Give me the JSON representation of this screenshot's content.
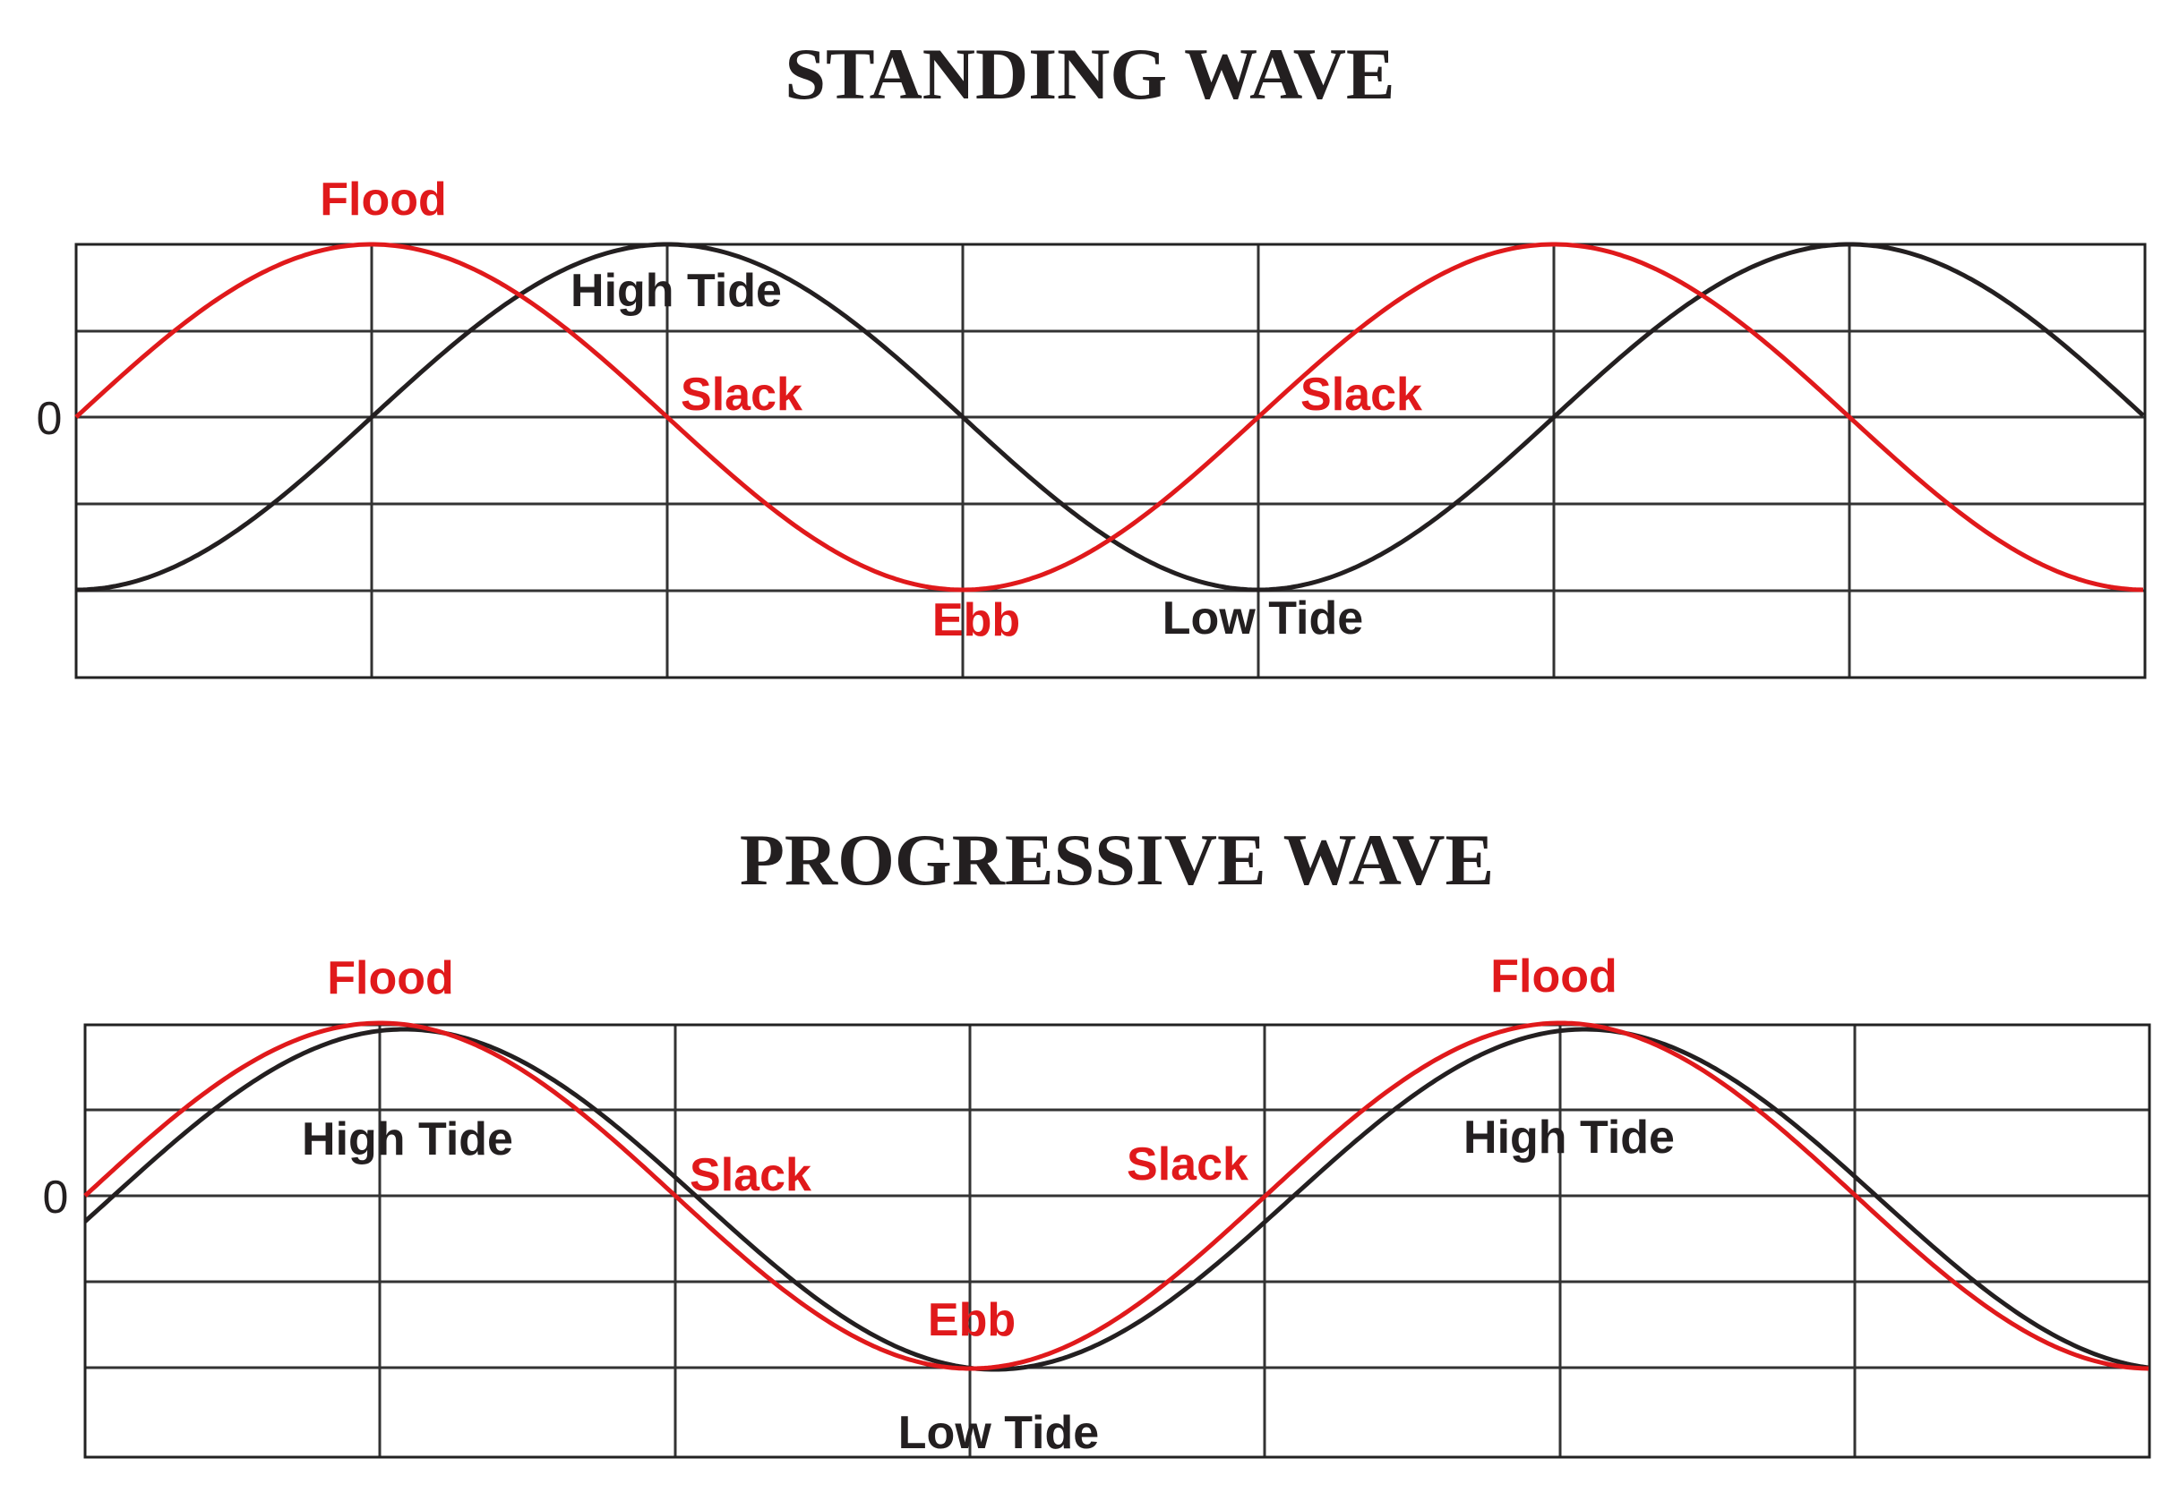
{
  "colors": {
    "current": "#e0191b",
    "tide": "#231f20",
    "grid": "#333333"
  },
  "diagrams": [
    {
      "title": "STANDING WAVE",
      "zero_label": "0",
      "labels": {
        "flood": "Flood",
        "high_tide": "High Tide",
        "slack_1": "Slack",
        "slack_2": "Slack",
        "ebb": "Ebb",
        "low_tide": "Low Tide"
      }
    },
    {
      "title": "PROGRESSIVE WAVE",
      "zero_label": "0",
      "labels": {
        "flood_1": "Flood",
        "flood_2": "Flood",
        "high_tide_1": "High Tide",
        "high_tide_2": "High Tide",
        "slack_1": "Slack",
        "slack_2": "Slack",
        "ebb": "Ebb",
        "low_tide": "Low Tide"
      }
    }
  ]
}
